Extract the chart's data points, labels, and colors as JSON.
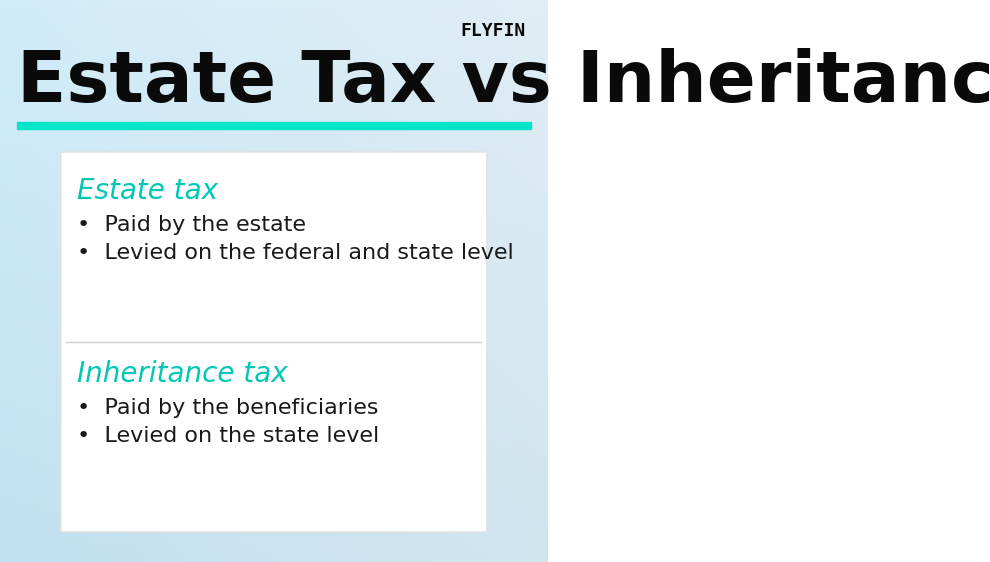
{
  "title": "Estate Tax vs Inheritance Tax",
  "title_fontsize": 52,
  "title_color": "#0a0a0a",
  "title_underline_color": "#00e5c8",
  "background_gradient_top": "#d6eaf5",
  "background_gradient_bottom": "#b8d8ec",
  "background_left": "#c8e6f5",
  "background_right": "#dce8f0",
  "logo_text": "FLYFIN",
  "logo_color": "#0a0a0a",
  "logo_fontsize": 13,
  "card_bg": "#ffffff",
  "card_border": "#e0e0e0",
  "section1_title": "Estate tax",
  "section1_color": "#00c8b4",
  "section1_bullets": [
    "Paid by the estate",
    "Levied on the federal and state level"
  ],
  "section2_title": "Inheritance tax",
  "section2_color": "#00c8b4",
  "section2_bullets": [
    "Paid by the beneficiaries",
    "Levied on the state level"
  ],
  "bullet_fontsize": 16,
  "section_title_fontsize": 20,
  "divider_color": "#d0d0d0",
  "bullet_color": "#1a1a1a"
}
